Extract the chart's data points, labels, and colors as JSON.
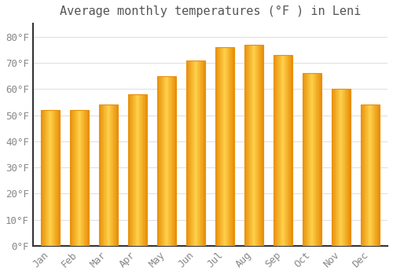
{
  "title": "Average monthly temperatures (°F ) in Leni",
  "months": [
    "Jan",
    "Feb",
    "Mar",
    "Apr",
    "May",
    "Jun",
    "Jul",
    "Aug",
    "Sep",
    "Oct",
    "Nov",
    "Dec"
  ],
  "values": [
    52,
    52,
    54,
    58,
    65,
    71,
    76,
    77,
    73,
    66,
    60,
    54
  ],
  "bar_color_center": "#FFD04A",
  "bar_color_edge": "#E8900A",
  "background_color": "#FFFFFF",
  "plot_bg_color": "#FFFFFF",
  "grid_color": "#E0E0E8",
  "yticks": [
    0,
    10,
    20,
    30,
    40,
    50,
    60,
    70,
    80
  ],
  "ylim": [
    0,
    85
  ],
  "title_fontsize": 11,
  "tick_fontsize": 9,
  "tick_color": "#888888",
  "title_color": "#555555",
  "spine_color": "#333333",
  "bar_width": 0.65,
  "font_family": "monospace"
}
